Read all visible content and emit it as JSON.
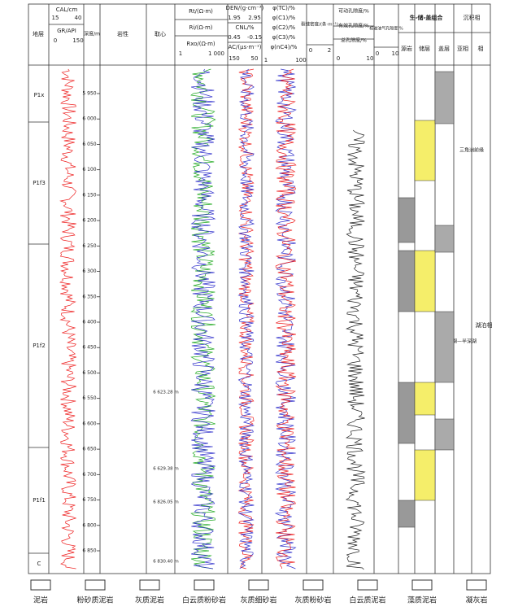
{
  "header": {
    "strata": "地层",
    "cal": "CAL/cm",
    "cal_min": "15",
    "cal_max": "40",
    "gr": "GR/API",
    "gr_min": "0",
    "gr_max": "150",
    "depth": "深度/m",
    "lithology": "岩性",
    "core": "取心",
    "rt": "Rt/(Ω·m)",
    "ri": "Ri/(Ω·m)",
    "rxo": "Rxo/(Ω·m)",
    "r_min": "1",
    "r_max": "1 000",
    "den": "DEN/(g·cm⁻³)",
    "den_min": "1.95",
    "den_max": "2.95",
    "cnl": "CNL/%",
    "cnl_min": "0.45",
    "cnl_max": "-0.15",
    "ac": "AC/(μs·m⁻¹)",
    "ac_min": "150",
    "ac_max": "50",
    "phi": [
      "φ(TC)/%",
      "φ(C1)/%",
      "φ(C2)/%",
      "φ(C3)/%",
      "φ(nC4)/%"
    ],
    "phi_min": "1",
    "phi_max": "100",
    "frac": "裂缝密度/(条·m⁻¹)",
    "frac_min": "0",
    "frac_max": "2",
    "por": [
      "可动孔隙度/%",
      "有效孔隙度/%",
      "总孔隙度/%"
    ],
    "por_min": "0",
    "por_max": "10",
    "nmr": "核磁油气孔隙度/%",
    "nmr_min": "0",
    "nmr_max": "10",
    "combo": "生-储-盖组合",
    "source": "源岩",
    "reservoir": "储层",
    "cap": "盖层",
    "facies": "沉积相",
    "subfacies": "亚相",
    "facies_col": "相"
  },
  "depth_ticks": [
    {
      "value": 5950,
      "label": "5 950"
    },
    {
      "value": 6000,
      "label": "6 000"
    },
    {
      "value": 6050,
      "label": "6 050"
    },
    {
      "value": 6100,
      "label": "6 100"
    },
    {
      "value": 6150,
      "label": "6 150"
    },
    {
      "value": 6200,
      "label": "6 200"
    },
    {
      "value": 6250,
      "label": "6 250"
    },
    {
      "value": 6300,
      "label": "6 300"
    },
    {
      "value": 6350,
      "label": "6 350"
    },
    {
      "value": 6400,
      "label": "6 400"
    },
    {
      "value": 6450,
      "label": "6 450"
    },
    {
      "value": 6500,
      "label": "6 500"
    },
    {
      "value": 6550,
      "label": "6 550"
    },
    {
      "value": 6600,
      "label": "6 600"
    },
    {
      "value": 6650,
      "label": "6 650"
    },
    {
      "value": 6700,
      "label": "6 700"
    },
    {
      "value": 6750,
      "label": "6 750"
    },
    {
      "value": 6800,
      "label": "6 800"
    },
    {
      "value": 6850,
      "label": "6 850"
    }
  ],
  "strata": [
    "P1x",
    "P1f3",
    "P1f2",
    "P1f1",
    "C"
  ],
  "cores": [
    "6 623.28 m",
    "6 629.38 m",
    "6 826.05 m",
    "6 830.40 m"
  ],
  "subfacies": [
    "三角洲前缘",
    "浅湖—半深湖"
  ],
  "facies": "湖泊相",
  "legend": [
    "泥岩",
    "粉砂质泥岩",
    "灰质泥岩",
    "白云质粉砂岩",
    "灰质细砂岩",
    "灰质粉砂岩",
    "白云质泥岩",
    "藻质泥岩",
    "凝灰岩"
  ]
}
